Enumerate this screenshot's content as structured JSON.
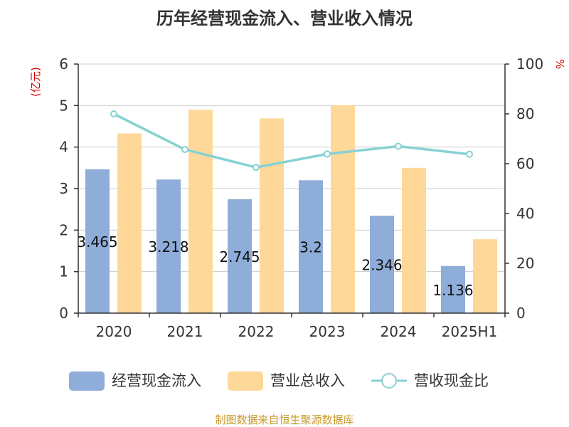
{
  "title": "历年经营现金流入、营业收入情况",
  "footer": "制图数据来自恒生聚源数据库",
  "chart_data": {
    "type": "bar",
    "categories": [
      "2020",
      "2021",
      "2022",
      "2023",
      "2024",
      "2025H1"
    ],
    "series": [
      {
        "name": "经营现金流入",
        "type": "bar",
        "axis": "left",
        "color": "#8eadd9",
        "values": [
          3.465,
          3.218,
          2.745,
          3.2,
          2.346,
          1.136
        ],
        "labels": [
          "3.465",
          "3.218",
          "2.745",
          "3.2",
          "2.346",
          "1.136"
        ]
      },
      {
        "name": "营业总收入",
        "type": "bar",
        "axis": "left",
        "color": "#fdd899",
        "values": [
          4.33,
          4.9,
          4.69,
          5.01,
          3.5,
          1.78
        ]
      },
      {
        "name": "营收现金比",
        "type": "line",
        "axis": "right",
        "color": "#88d1d4",
        "values": [
          80,
          65.7,
          58.5,
          63.9,
          67,
          63.8
        ]
      }
    ],
    "left_axis": {
      "label": "(亿元)",
      "ylim": [
        0,
        6
      ],
      "ticks": [
        "0",
        "1",
        "2",
        "3",
        "4",
        "5",
        "6"
      ]
    },
    "right_axis": {
      "label": "%",
      "ylim": [
        0,
        100
      ],
      "ticks": [
        "0",
        "20",
        "40",
        "60",
        "80",
        "100"
      ]
    },
    "grid": true,
    "legend_position": "bottom",
    "axis_label_color": "#dd0000",
    "footer_color": "#c89a2b"
  }
}
